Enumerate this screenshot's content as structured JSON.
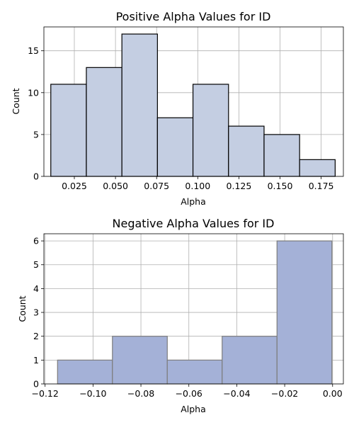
{
  "chart_data": [
    {
      "type": "bar",
      "title": "Positive Alpha Values for ID",
      "xlabel": "Alpha",
      "ylabel": "Count",
      "xlim": [
        0.0065,
        0.1885
      ],
      "ylim": [
        0,
        17.85
      ],
      "xticks": [
        0.025,
        0.05,
        0.075,
        0.1,
        0.125,
        0.15,
        0.175
      ],
      "xtick_labels": [
        "0.025",
        "0.050",
        "0.075",
        "0.100",
        "0.125",
        "0.150",
        "0.175"
      ],
      "yticks": [
        0,
        5,
        10,
        15
      ],
      "ytick_labels": [
        "0",
        "5",
        "10",
        "15"
      ],
      "grid": true,
      "bar_color": "#c4cee2",
      "bar_edge": "#000000",
      "bins": [
        {
          "x0": 0.0107,
          "x1": 0.0323,
          "count": 11
        },
        {
          "x0": 0.0323,
          "x1": 0.0539,
          "count": 13
        },
        {
          "x0": 0.0539,
          "x1": 0.0755,
          "count": 17
        },
        {
          "x0": 0.0755,
          "x1": 0.0971,
          "count": 7
        },
        {
          "x0": 0.0971,
          "x1": 0.1187,
          "count": 11
        },
        {
          "x0": 0.1187,
          "x1": 0.1403,
          "count": 6
        },
        {
          "x0": 0.1403,
          "x1": 0.1619,
          "count": 5
        },
        {
          "x0": 0.1619,
          "x1": 0.1835,
          "count": 2
        }
      ]
    },
    {
      "type": "bar",
      "title": "Negative Alpha Values for ID",
      "xlabel": "Alpha",
      "ylabel": "Count",
      "xlim": [
        -0.1205,
        0.0045
      ],
      "ylim": [
        0,
        6.3
      ],
      "xticks": [
        -0.12,
        -0.1,
        -0.08,
        -0.06,
        -0.04,
        -0.02,
        0.0
      ],
      "xtick_labels": [
        "−0.12",
        "−0.10",
        "−0.08",
        "−0.06",
        "−0.04",
        "−0.02",
        "0.00"
      ],
      "yticks": [
        0,
        1,
        2,
        3,
        4,
        5,
        6
      ],
      "ytick_labels": [
        "0",
        "1",
        "2",
        "3",
        "4",
        "5",
        "6"
      ],
      "grid": true,
      "bar_color": "#a4b1d7",
      "bar_edge": "#7d7d7d",
      "bins": [
        {
          "x0": -0.1148,
          "x1": -0.0919,
          "count": 1
        },
        {
          "x0": -0.0919,
          "x1": -0.069,
          "count": 2
        },
        {
          "x0": -0.069,
          "x1": -0.0461,
          "count": 1
        },
        {
          "x0": -0.0461,
          "x1": -0.0232,
          "count": 2
        },
        {
          "x0": -0.0232,
          "x1": -0.0003,
          "count": 6
        }
      ]
    }
  ]
}
